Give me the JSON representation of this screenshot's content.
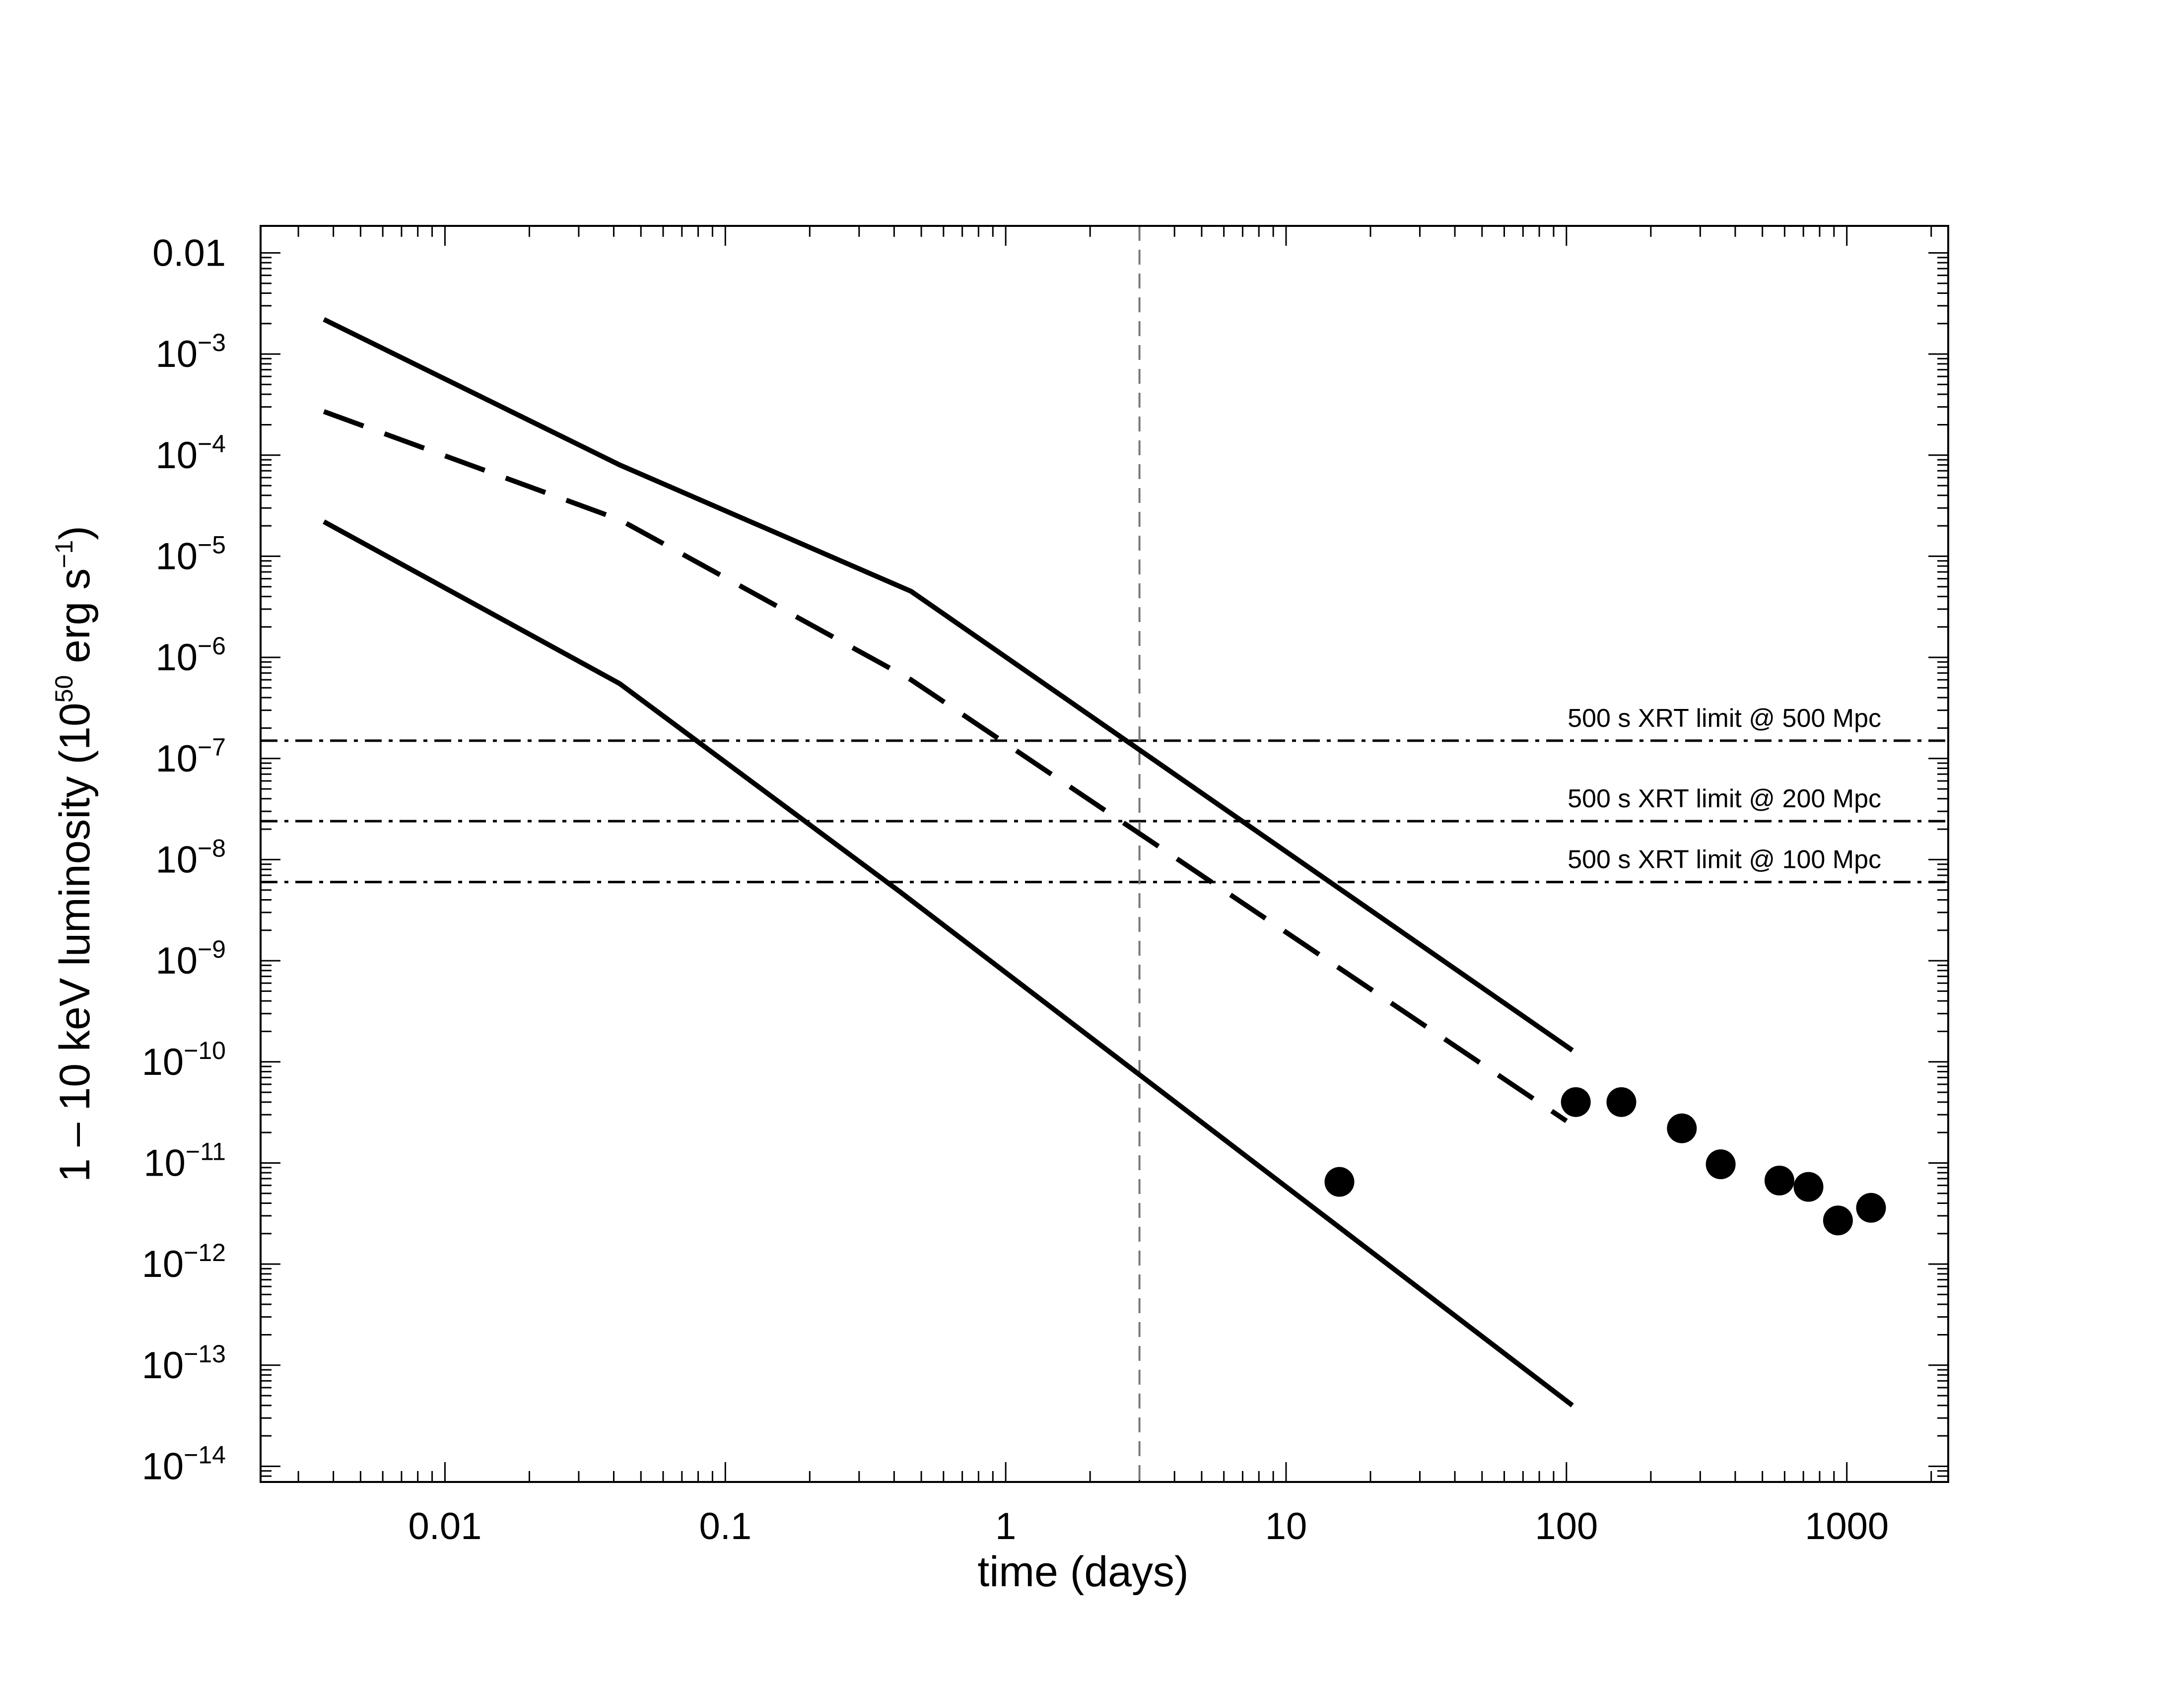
{
  "chart_data": {
    "type": "line",
    "xlabel": "time (days)",
    "ylabel_parts": {
      "pre": "1 – 10 keV luminosity (10",
      "sup1": "50",
      "mid": " erg s",
      "sup2": "−1",
      "post": ")"
    },
    "xscale": "log",
    "yscale": "log",
    "xlim": [
      0.0022,
      2300
    ],
    "ylim": [
      7e-15,
      0.0185
    ],
    "x_ticks": [
      {
        "value": 0.01,
        "label": "0.01"
      },
      {
        "value": 0.1,
        "label": "0.1"
      },
      {
        "value": 1,
        "label": "1"
      },
      {
        "value": 10,
        "label": "10"
      },
      {
        "value": 100,
        "label": "100"
      },
      {
        "value": 1000,
        "label": "1000"
      }
    ],
    "y_ticks": [
      {
        "value": 0.01,
        "label": "0.01",
        "base": "",
        "exp": ""
      },
      {
        "value": 0.001,
        "label": "",
        "base": "10",
        "exp": "−3"
      },
      {
        "value": 0.0001,
        "label": "",
        "base": "10",
        "exp": "−4"
      },
      {
        "value": 1e-05,
        "label": "",
        "base": "10",
        "exp": "−5"
      },
      {
        "value": 1e-06,
        "label": "",
        "base": "10",
        "exp": "−6"
      },
      {
        "value": 1e-07,
        "label": "",
        "base": "10",
        "exp": "−7"
      },
      {
        "value": 1e-08,
        "label": "",
        "base": "10",
        "exp": "−8"
      },
      {
        "value": 1e-09,
        "label": "",
        "base": "10",
        "exp": "−9"
      },
      {
        "value": 1e-10,
        "label": "",
        "base": "10",
        "exp": "−10"
      },
      {
        "value": 1e-11,
        "label": "",
        "base": "10",
        "exp": "−11"
      },
      {
        "value": 1e-12,
        "label": "",
        "base": "10",
        "exp": "−12"
      },
      {
        "value": 1e-13,
        "label": "",
        "base": "10",
        "exp": "−13"
      },
      {
        "value": 1e-14,
        "label": "",
        "base": "10",
        "exp": "−14"
      }
    ],
    "series": [
      {
        "style": "solid",
        "points": [
          [
            0.0037,
            0.0022
          ],
          [
            0.042,
            8e-05
          ],
          [
            0.46,
            4.5e-06
          ],
          [
            105,
            1.3e-10
          ]
        ]
      },
      {
        "style": "dashed",
        "points": [
          [
            0.0037,
            0.00027
          ],
          [
            0.042,
            2.3e-05
          ],
          [
            0.46,
            6e-07
          ],
          [
            100,
            2.6e-11
          ]
        ]
      },
      {
        "style": "solid",
        "points": [
          [
            0.0037,
            2.2e-05
          ],
          [
            0.042,
            5.5e-07
          ],
          [
            0.42,
            4.8e-09
          ],
          [
            105,
            4e-14
          ]
        ]
      }
    ],
    "observations": [
      [
        15.5,
        6.5e-12
      ],
      [
        108,
        4e-11
      ],
      [
        157,
        4e-11
      ],
      [
        258,
        2.2e-11
      ],
      [
        355,
        9.7e-12
      ],
      [
        575,
        6.7e-12
      ],
      [
        730,
        5.8e-12
      ],
      [
        930,
        2.7e-12
      ],
      [
        1220,
        3.6e-12
      ]
    ],
    "vertical_line": {
      "x": 3,
      "style": "dashed",
      "color": "#777777"
    },
    "reference_lines": [
      {
        "y": 1.5e-07,
        "label": "500 s XRT limit @ 500 Mpc"
      },
      {
        "y": 2.4e-08,
        "label": "500 s XRT limit @ 200 Mpc"
      },
      {
        "y": 6e-09,
        "label": "500 s XRT limit @ 100 Mpc"
      }
    ],
    "grid": false,
    "legend": "none"
  }
}
